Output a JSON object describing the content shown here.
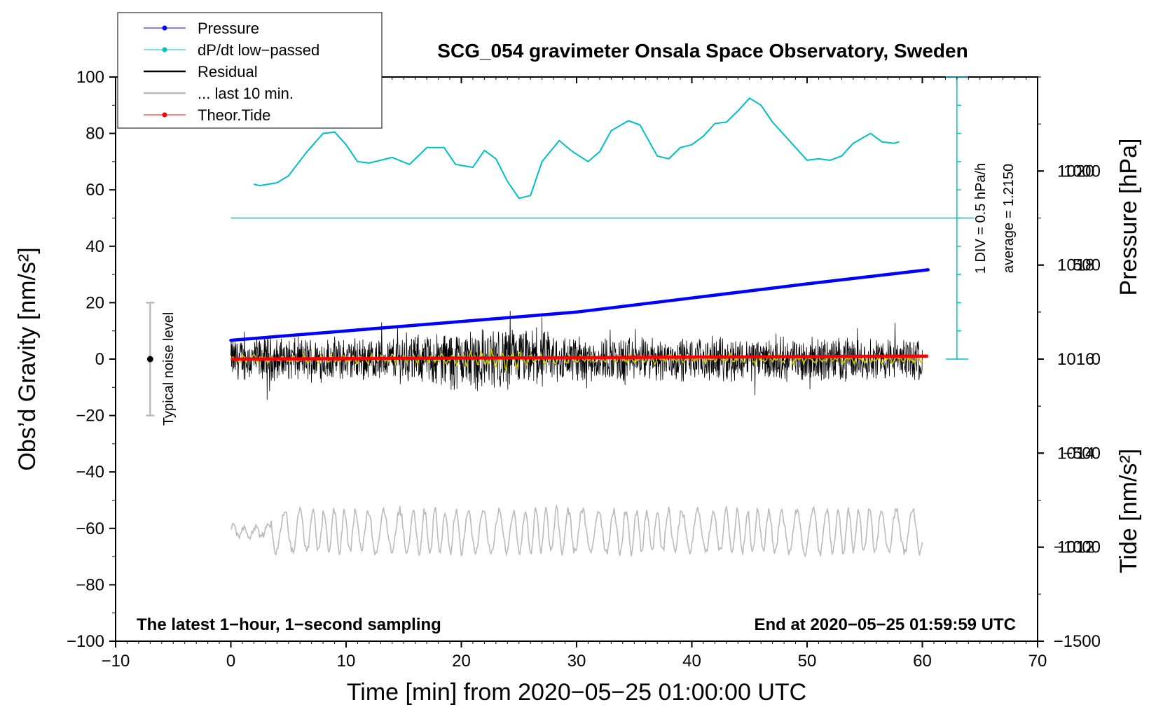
{
  "chart_data": {
    "type": "line",
    "title": "SCG_054 gravimeter Onsala Space Observatory, Sweden",
    "xlabel": "Time [min] from 2020−05−25 01:00:00 UTC",
    "ylabel_left": "Obs’d Gravity [nm/s²]",
    "ylabel_right_top": "Pressure [hPa]",
    "ylabel_right_bottom": "Tide [nm/s²]",
    "xlim": [
      -10,
      70
    ],
    "ylim_left": [
      -100,
      100
    ],
    "ylim_pressure": [
      1010,
      1022
    ],
    "ylim_tide": [
      -1500,
      1500
    ],
    "x_ticks": [
      "−10",
      "0",
      "10",
      "20",
      "30",
      "40",
      "50",
      "60",
      "70"
    ],
    "y_left_ticks": [
      "100",
      "80",
      "60",
      "40",
      "20",
      "0",
      "−20",
      "−40",
      "−60",
      "−80",
      "−100"
    ],
    "y_pressure_ticks": [
      "1012",
      "1014",
      "1016",
      "1018",
      "1020"
    ],
    "y_tide_ticks": [
      "1000",
      "500",
      "0",
      "−500",
      "−1000",
      "−1500"
    ],
    "note_left": "The latest 1−hour, 1−second sampling",
    "note_right": "End at 2020−05−25 01:59:59 UTC",
    "noise_label": "Typical noise level",
    "noise_bar": {
      "x": -7,
      "center": 0,
      "half_range": 20
    },
    "dpdt_scale_label": "1 DIV = 0.5 hPa/h",
    "dpdt_average_label": "average = 1.2150",
    "dpdt_scale_bar": {
      "x": 63,
      "zero_level": 50,
      "top": 100,
      "bottom": 0,
      "div_gravity": 10
    },
    "legend": [
      {
        "name": "Pressure",
        "color": "#0000ff",
        "style": "line-dot"
      },
      {
        "name": "dP/dt low−passed",
        "color": "#00c0c0",
        "style": "line-dot"
      },
      {
        "name": "Residual",
        "color": "#000000",
        "style": "line"
      },
      {
        "name": "... last 10 min.",
        "color": "#bbbbbb",
        "style": "line"
      },
      {
        "name": "Theor.Tide",
        "color": "#ff0000",
        "style": "line-dot"
      }
    ],
    "series": {
      "pressure": {
        "name": "Pressure",
        "axis": "pressure_hPa",
        "color": "#0000ff",
        "x": [
          0,
          10,
          20,
          30,
          40,
          50,
          60.5
        ],
        "values": [
          1016.4,
          1016.6,
          1016.8,
          1017.0,
          1017.3,
          1017.6,
          1017.9
        ]
      },
      "dpdt": {
        "name": "dP/dt low-passed",
        "axis": "gravity_scaled",
        "color": "#00c0c0",
        "x": [
          2,
          2.5,
          4,
          5,
          6.5,
          8,
          9,
          10,
          11,
          12,
          14,
          15.5,
          17,
          18.5,
          19.5,
          21,
          22,
          23,
          24,
          25,
          26,
          27,
          28.5,
          29.5,
          31,
          32,
          33,
          34.5,
          35.5,
          37,
          38,
          39,
          40,
          41,
          42,
          43,
          44,
          45,
          46,
          47,
          48,
          49,
          50,
          51,
          52,
          53,
          54,
          55.5,
          56.5,
          57.5,
          58
        ],
        "values": [
          62,
          61.5,
          62.5,
          65,
          73,
          80,
          80.5,
          76,
          70,
          69.5,
          71.5,
          69,
          75,
          75,
          69,
          68,
          74,
          71,
          63,
          57,
          58,
          70,
          77.5,
          74,
          70,
          73.5,
          81,
          84.5,
          83,
          72,
          71,
          75,
          76,
          79,
          83.5,
          84,
          88,
          92.5,
          90,
          84,
          79.5,
          75,
          70.5,
          71,
          70.5,
          72,
          76.5,
          80,
          77,
          76.5,
          77
        ]
      },
      "residual": {
        "name": "Residual",
        "axis": "gravity",
        "color": "#000000",
        "x_range": [
          0,
          60
        ],
        "sample_step_s": 1,
        "range": [
          -15,
          18
        ]
      },
      "residual_smoothed": {
        "name": "Residual (smoothed)",
        "axis": "gravity",
        "color": "#c8c800",
        "x_range": [
          0,
          60
        ],
        "range": [
          -3,
          3
        ]
      },
      "last10": {
        "name": "... last 10 min.",
        "axis": "gravity",
        "color": "#bbbbbb",
        "x_range": [
          0,
          60
        ],
        "center": -61,
        "range": [
          -75,
          -48
        ]
      },
      "tide": {
        "name": "Theor.Tide",
        "axis": "tide_nm_s2",
        "color": "#ff0000",
        "x": [
          0,
          60.5
        ],
        "values": [
          0,
          16
        ]
      }
    }
  }
}
